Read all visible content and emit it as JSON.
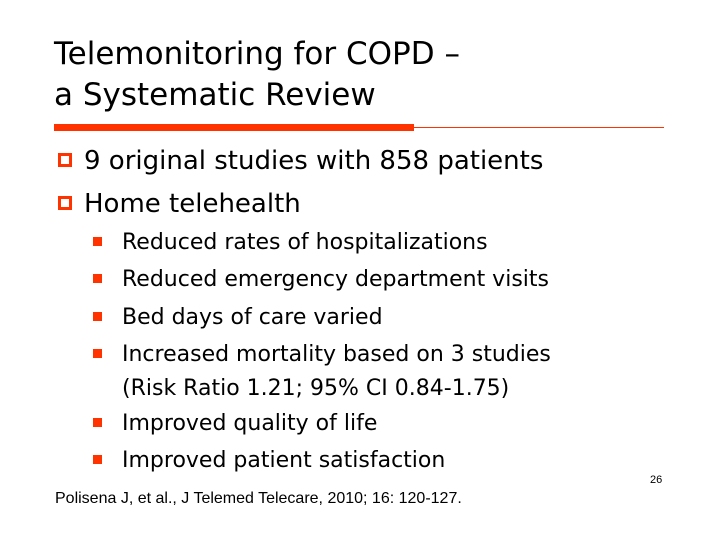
{
  "slide": {
    "title_line1": "Telemonitoring for COPD –",
    "title_line2": "a Systematic Review",
    "bullets": [
      "9 original studies with 858 patients",
      "Home telehealth"
    ],
    "sub_bullets": [
      "Reduced rates of hospitalizations",
      "Reduced emergency department visits",
      "Bed days of care varied",
      "Increased mortality based on 3 studies",
      "Improved quality of life",
      "Improved patient satisfaction"
    ],
    "sub_bullet_continuation": "(Risk Ratio 1.21; 95% CI 0.84-1.75)",
    "citation": "Polisena J, et al., J Telemed Telecare, 2010; 16: 120-127.",
    "page_number": "26"
  },
  "colors": {
    "accent": "#ff3300",
    "text": "#000000",
    "background": "#ffffff"
  }
}
